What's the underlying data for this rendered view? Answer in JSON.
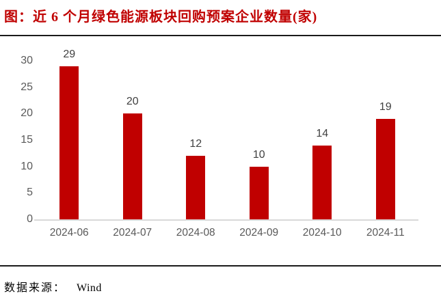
{
  "page": {
    "title": "图：近 6 个月绿色能源板块回购预案企业数量(家)",
    "source_label": "数据来源：",
    "source_value": "Wind"
  },
  "colors": {
    "bar": "#c00000",
    "title_text": "#c00000",
    "axis_label": "#595959",
    "data_label": "#404040",
    "axis_line": "#d9d9d9",
    "divider": "#1a1a1a"
  },
  "chart_data": {
    "type": "bar",
    "title": "近 6 个月绿色能源板块回购预案企业数量(家)",
    "categories": [
      "2024-06",
      "2024-07",
      "2024-08",
      "2024-09",
      "2024-10",
      "2024-11"
    ],
    "values": [
      29,
      20,
      12,
      10,
      14,
      19
    ],
    "xlabel": "",
    "ylabel": "",
    "ylim": [
      0,
      30
    ],
    "yticks": [
      0,
      5,
      10,
      15,
      20,
      25,
      30
    ],
    "grid": false,
    "legend": "none",
    "data_labels_shown": true,
    "bar_color": "#c00000"
  }
}
